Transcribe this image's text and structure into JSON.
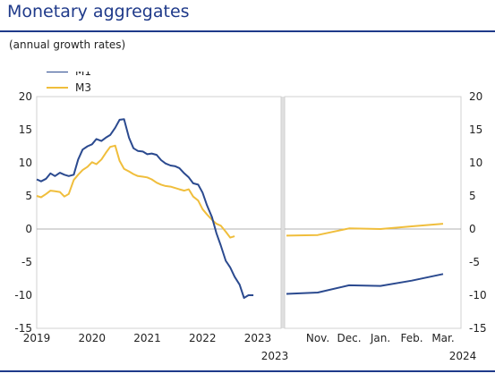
{
  "header": {
    "title": "Monetary aggregates",
    "subtitle": "(annual growth rates)"
  },
  "colors": {
    "title": "#1f3a8a",
    "m1": "#2b4a8f",
    "m3": "#f0be3c",
    "zero": "#b0b0b0"
  },
  "chart_data": [
    {
      "type": "line",
      "title": "",
      "xlabel": "",
      "ylabel": "",
      "ylim": [
        -15,
        20
      ],
      "yticks": [
        20,
        15,
        10,
        5,
        0,
        -5,
        -10,
        -15
      ],
      "grid": false,
      "legend": "top-left",
      "xticks": [
        "2019",
        "2020",
        "2021",
        "2022",
        "2023"
      ],
      "series": [
        {
          "name": "M1",
          "x": [
            2019.0,
            2019.08,
            2019.17,
            2019.25,
            2019.33,
            2019.42,
            2019.5,
            2019.58,
            2019.67,
            2019.75,
            2019.83,
            2019.92,
            2020.0,
            2020.08,
            2020.17,
            2020.25,
            2020.33,
            2020.42,
            2020.5,
            2020.58,
            2020.67,
            2020.75,
            2020.83,
            2020.92,
            2021.0,
            2021.08,
            2021.17,
            2021.25,
            2021.33,
            2021.42,
            2021.5,
            2021.58,
            2021.67,
            2021.75,
            2021.83,
            2021.92,
            2022.0,
            2022.08,
            2022.17,
            2022.25,
            2022.33,
            2022.42,
            2022.5,
            2022.58,
            2022.67,
            2022.75,
            2022.83,
            2022.92,
            2023.0,
            2023.08,
            2023.17,
            2023.25
          ],
          "values": [
            7.5,
            7.2,
            7.6,
            8.4,
            8.0,
            8.5,
            8.2,
            8.0,
            8.2,
            10.5,
            12.0,
            12.5,
            12.8,
            13.6,
            13.3,
            13.8,
            14.2,
            15.3,
            16.5,
            16.6,
            13.8,
            12.2,
            11.8,
            11.7,
            11.3,
            11.4,
            11.2,
            10.4,
            9.9,
            9.6,
            9.5,
            9.2,
            8.4,
            7.8,
            6.9,
            6.7,
            5.5,
            3.6,
            1.8,
            -0.6,
            -2.5,
            -4.8,
            -5.8,
            -7.2,
            -8.4,
            -10.4,
            -10.0,
            -10.0,
            null,
            null,
            null,
            null
          ]
        },
        {
          "name": "M3",
          "x": [
            2019.0,
            2019.08,
            2019.17,
            2019.25,
            2019.33,
            2019.42,
            2019.5,
            2019.58,
            2019.67,
            2019.75,
            2019.83,
            2019.92,
            2020.0,
            2020.08,
            2020.17,
            2020.25,
            2020.33,
            2020.42,
            2020.5,
            2020.58,
            2020.67,
            2020.75,
            2020.83,
            2020.92,
            2021.0,
            2021.08,
            2021.17,
            2021.25,
            2021.33,
            2021.42,
            2021.5,
            2021.58,
            2021.67,
            2021.75,
            2021.83,
            2021.92,
            2022.0,
            2022.08,
            2022.17,
            2022.25,
            2022.33,
            2022.42,
            2022.5,
            2022.58,
            2022.67,
            2022.75,
            2022.83,
            2022.92
          ],
          "values": [
            5.0,
            4.8,
            5.3,
            5.8,
            5.7,
            5.6,
            4.9,
            5.3,
            7.4,
            8.2,
            8.9,
            9.4,
            10.1,
            9.8,
            10.5,
            11.5,
            12.4,
            12.6,
            10.3,
            9.1,
            8.7,
            8.3,
            8.0,
            7.9,
            7.8,
            7.5,
            7.0,
            6.7,
            6.5,
            6.4,
            6.2,
            6.0,
            5.8,
            6.0,
            4.9,
            4.3,
            3.0,
            2.2,
            1.4,
            0.8,
            0.5,
            -0.4,
            -1.3,
            -1.1,
            null,
            null,
            null,
            null
          ]
        }
      ]
    },
    {
      "type": "line",
      "title": "",
      "xlabel": "",
      "ylabel": "",
      "ylim": [
        -15,
        20
      ],
      "yticks": [
        20,
        15,
        10,
        5,
        0,
        -5,
        -10,
        -15
      ],
      "grid": false,
      "xticks": [
        "Nov.",
        "Dec.",
        "Jan.",
        "Feb.",
        "Mar."
      ],
      "xticks_year": [
        "2023",
        "2024"
      ],
      "series": [
        {
          "name": "M1",
          "x": [
            "Oct.",
            "Nov.",
            "Dec.",
            "Jan.",
            "Feb.",
            "Mar."
          ],
          "values": [
            -9.8,
            -9.6,
            -8.5,
            -8.6,
            -7.8,
            -6.8
          ]
        },
        {
          "name": "M3",
          "x": [
            "Oct.",
            "Nov.",
            "Dec.",
            "Jan.",
            "Feb.",
            "Mar."
          ],
          "values": [
            -1.0,
            -0.9,
            0.1,
            0.0,
            0.4,
            0.8
          ]
        }
      ]
    }
  ]
}
